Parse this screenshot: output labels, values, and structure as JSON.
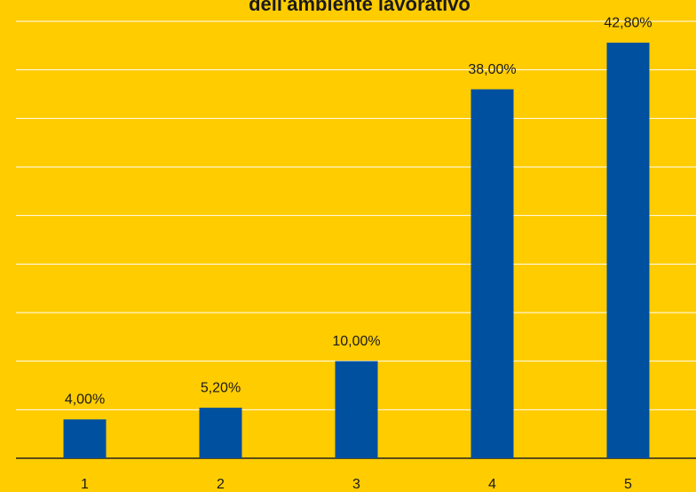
{
  "chart_data": {
    "type": "bar",
    "title": "dell'ambiente lavorativo",
    "categories": [
      "1",
      "2",
      "3",
      "4",
      "5"
    ],
    "values": [
      4,
      5.2,
      10,
      38,
      42.8
    ],
    "value_labels": [
      "4,00%",
      "5,20%",
      "10,00%",
      "38,00%",
      "42,80%"
    ],
    "color": "#0050a0",
    "ylim": [
      0,
      45
    ],
    "yticks": [
      0,
      5,
      10,
      15,
      20,
      25,
      30,
      35,
      40,
      45
    ],
    "grid": true
  }
}
